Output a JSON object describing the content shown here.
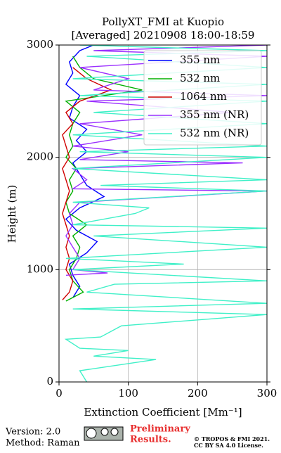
{
  "chart_data": {
    "type": "profile",
    "title": "PollyXT_FMI at Kuopio",
    "subtitle": "[Averaged] 20210908 18:00-18:59",
    "x_label": "Extinction Coefficient [Mm⁻¹]",
    "y_label": "Height (m)",
    "xlim": [
      0,
      300
    ],
    "xticks": [
      0,
      100,
      200,
      300
    ],
    "ylim": [
      0,
      3000
    ],
    "yticks": [
      0,
      1000,
      2000,
      3000
    ],
    "grid": true,
    "legend": "upper right",
    "series": [
      {
        "name": "355 nm",
        "color": "#0000ff",
        "height": [
          750,
          850,
          950,
          1050,
          1150,
          1250,
          1350,
          1450,
          1550,
          1650,
          1750,
          1850,
          1950,
          2050,
          2150,
          2250,
          2350,
          2450,
          2550,
          2650,
          2750,
          2850,
          2950,
          3000
        ],
        "values": [
          20,
          30,
          20,
          15,
          40,
          55,
          25,
          10,
          30,
          65,
          40,
          30,
          20,
          40,
          25,
          40,
          15,
          20,
          30,
          10,
          20,
          15,
          30,
          50
        ]
      },
      {
        "name": "532 nm",
        "color": "#00b000",
        "height": [
          720,
          800,
          900,
          1000,
          1100,
          1200,
          1300,
          1400,
          1500,
          1600,
          1700,
          1800,
          1900,
          2000,
          2100,
          2200,
          2300,
          2400,
          2500,
          2600,
          2700,
          2800,
          2900
        ],
        "values": [
          10,
          35,
          20,
          15,
          25,
          30,
          20,
          40,
          15,
          10,
          20,
          15,
          25,
          10,
          20,
          15,
          20,
          30,
          10,
          120,
          50,
          30,
          20
        ]
      },
      {
        "name": "1064 nm",
        "color": "#d00000",
        "height": [
          730,
          800,
          900,
          1000,
          1100,
          1200,
          1300,
          1400,
          1500,
          1600,
          1700,
          1800,
          1900,
          2000,
          2100,
          2200,
          2300,
          2400,
          2500,
          2600,
          2700,
          2800
        ],
        "values": [
          5,
          15,
          20,
          10,
          15,
          10,
          15,
          10,
          5,
          10,
          15,
          10,
          5,
          15,
          10,
          5,
          20,
          10,
          30,
          75,
          40,
          20
        ]
      },
      {
        "name": "355 nm (NR)",
        "color": "#9b30ff",
        "height": [
          950,
          970,
          1000,
          1100,
          1200,
          1300,
          1400,
          1500,
          1600,
          1700,
          1720,
          1800,
          1900,
          1950,
          1980,
          2050,
          2100,
          2200,
          2300,
          2400,
          2500,
          2550,
          2600,
          2700,
          2800,
          2900,
          2950,
          3000
        ],
        "values": [
          10,
          70,
          20,
          30,
          20,
          10,
          20,
          15,
          30,
          300,
          20,
          40,
          20,
          265,
          30,
          100,
          20,
          120,
          30,
          250,
          40,
          300,
          50,
          100,
          30,
          300,
          50,
          300
        ]
      },
      {
        "name": "532 nm (NR)",
        "color": "#40f0c8",
        "height": [
          0,
          100,
          200,
          230,
          280,
          300,
          380,
          400,
          500,
          600,
          650,
          700,
          800,
          870,
          900,
          1000,
          1050,
          1100,
          1200,
          1300,
          1370,
          1400,
          1500,
          1550,
          1600,
          1700,
          1750,
          1800,
          1900,
          2000,
          2050,
          2100,
          2200,
          2300,
          2400,
          2500,
          2550,
          2650,
          2700,
          2800,
          2900,
          2950,
          3000
        ],
        "values": [
          40,
          30,
          140,
          50,
          100,
          30,
          10,
          60,
          90,
          300,
          20,
          300,
          40,
          80,
          300,
          20,
          180,
          10,
          300,
          50,
          300,
          20,
          110,
          130,
          20,
          300,
          60,
          300,
          20,
          300,
          30,
          300,
          20,
          300,
          50,
          300,
          30,
          300,
          20,
          300,
          40,
          300,
          30
        ]
      }
    ]
  },
  "footer": {
    "version": "Version: 2.0",
    "method": "Method: Raman",
    "preliminary": [
      "Preliminary",
      "Results."
    ],
    "copyright": [
      "© TROPOS & FMI 2021.",
      "CC BY SA 4.0 License."
    ]
  }
}
